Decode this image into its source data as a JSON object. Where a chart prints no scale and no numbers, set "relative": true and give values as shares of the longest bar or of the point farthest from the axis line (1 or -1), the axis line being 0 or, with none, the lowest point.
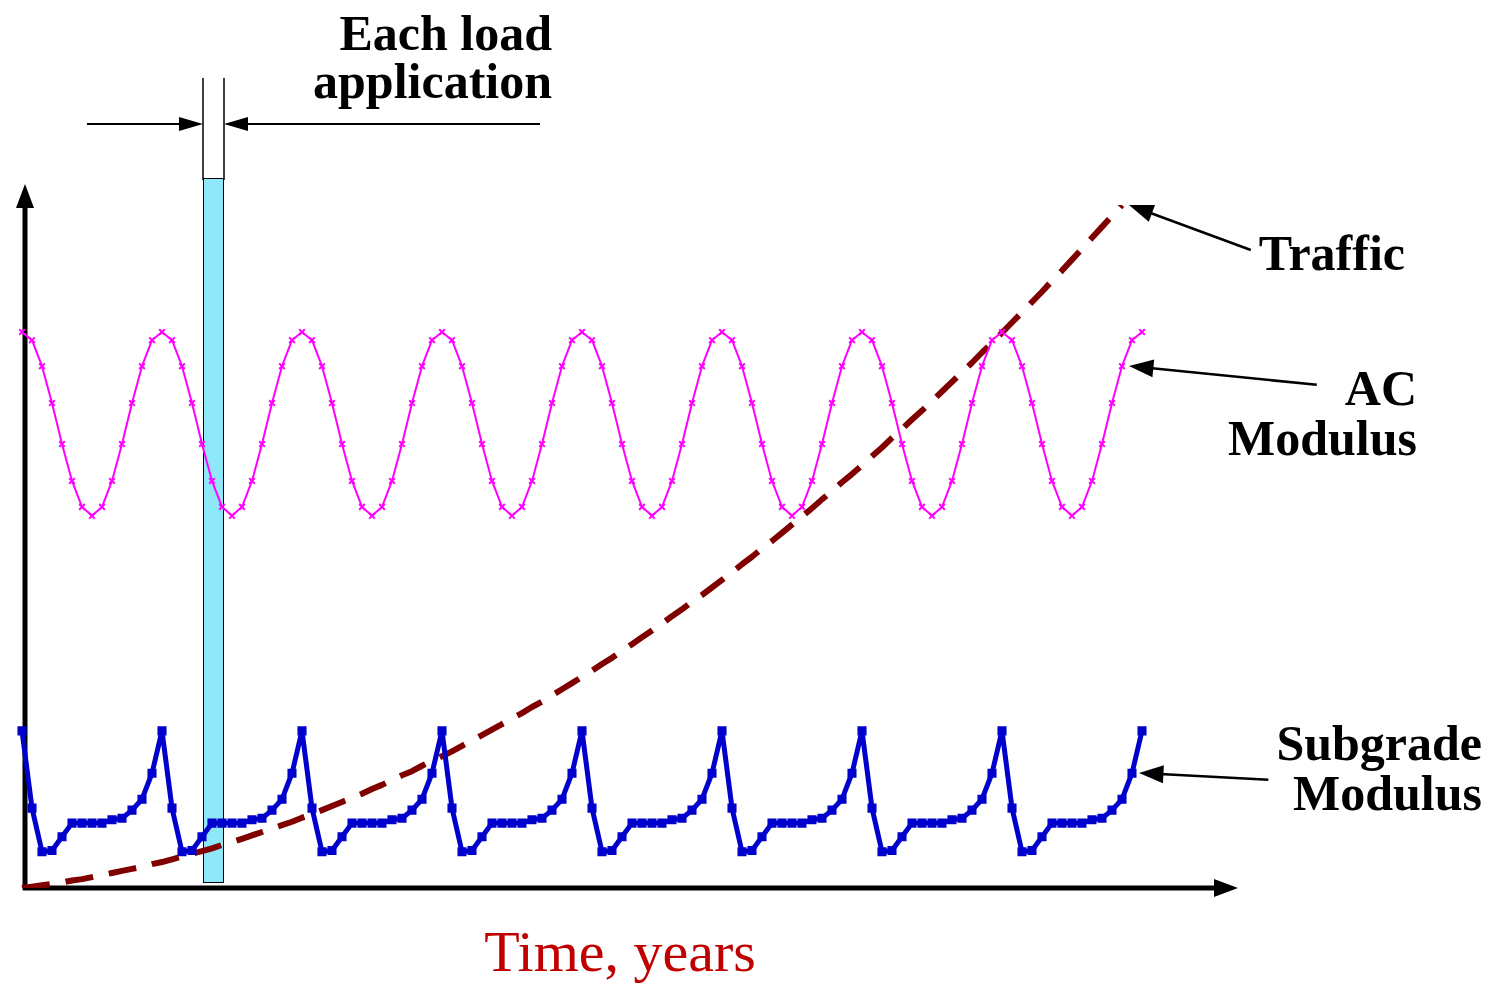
{
  "chart_data": {
    "type": "line",
    "relative": true,
    "xlabel": "Time, years",
    "legend": false,
    "tick_labels": false,
    "annotations": [
      "Each load application"
    ],
    "categories": [
      null,
      null,
      null,
      null,
      null,
      null,
      null,
      null,
      null,
      null,
      null,
      null,
      null,
      null,
      null,
      null,
      null,
      null,
      null,
      null,
      null,
      null,
      null,
      null,
      null,
      null,
      null,
      null,
      null,
      null,
      null,
      null,
      null,
      null,
      null,
      null,
      null,
      null,
      null,
      null,
      null,
      null,
      null,
      null,
      null,
      null,
      null,
      null,
      null,
      null,
      null,
      null,
      null,
      null,
      null,
      null,
      null,
      null,
      null,
      null,
      null,
      null,
      null,
      null,
      null,
      null,
      null,
      null,
      null,
      null,
      null,
      null,
      null,
      null,
      null,
      null,
      null,
      null,
      null,
      null,
      null,
      null,
      null,
      null,
      null,
      null,
      null,
      null,
      null,
      null,
      null,
      null,
      null,
      null,
      null,
      null,
      null,
      null,
      null,
      null,
      null,
      null,
      null,
      null,
      null,
      null,
      null,
      null,
      null,
      null,
      null,
      null,
      null
    ],
    "series": [
      {
        "name": "AC Modulus",
        "color": "#ff00ff",
        "marker": "cross",
        "line_style": "solid",
        "values": [
          0.814,
          0.802,
          0.764,
          0.71,
          0.65,
          0.596,
          0.558,
          0.545,
          0.558,
          0.596,
          0.65,
          0.71,
          0.764,
          0.802,
          0.814,
          0.802,
          0.764,
          0.71,
          0.65,
          0.596,
          0.558,
          0.545,
          0.558,
          0.596,
          0.65,
          0.71,
          0.764,
          0.802,
          0.814,
          0.802,
          0.764,
          0.71,
          0.65,
          0.596,
          0.558,
          0.545,
          0.558,
          0.596,
          0.65,
          0.71,
          0.764,
          0.802,
          0.814,
          0.802,
          0.764,
          0.71,
          0.65,
          0.596,
          0.558,
          0.545,
          0.558,
          0.596,
          0.65,
          0.71,
          0.764,
          0.802,
          0.814,
          0.802,
          0.764,
          0.71,
          0.65,
          0.596,
          0.558,
          0.545,
          0.558,
          0.596,
          0.65,
          0.71,
          0.764,
          0.802,
          0.814,
          0.802,
          0.764,
          0.71,
          0.65,
          0.596,
          0.558,
          0.545,
          0.558,
          0.596,
          0.65,
          0.71,
          0.764,
          0.802,
          0.814,
          0.802,
          0.764,
          0.71,
          0.65,
          0.596,
          0.558,
          0.545,
          0.558,
          0.596,
          0.65,
          0.71,
          0.764,
          0.802,
          0.814,
          0.802,
          0.764,
          0.71,
          0.65,
          0.596,
          0.558,
          0.545,
          0.558,
          0.596,
          0.65,
          0.71,
          0.764,
          0.802,
          0.814
        ]
      },
      {
        "name": "Subgrade Modulus",
        "color": "#0000cc",
        "marker": "square",
        "line_style": "solid",
        "values": [
          0.23,
          0.117,
          0.053,
          0.055,
          0.075,
          0.095,
          0.095,
          0.095,
          0.095,
          0.1,
          0.102,
          0.114,
          0.13,
          0.168,
          0.23,
          0.117,
          0.053,
          0.055,
          0.075,
          0.095,
          0.095,
          0.095,
          0.095,
          0.1,
          0.102,
          0.114,
          0.13,
          0.168,
          0.23,
          0.117,
          0.053,
          0.055,
          0.075,
          0.095,
          0.095,
          0.095,
          0.095,
          0.1,
          0.102,
          0.114,
          0.13,
          0.168,
          0.23,
          0.117,
          0.053,
          0.055,
          0.075,
          0.095,
          0.095,
          0.095,
          0.095,
          0.1,
          0.102,
          0.114,
          0.13,
          0.168,
          0.23,
          0.117,
          0.053,
          0.055,
          0.075,
          0.095,
          0.095,
          0.095,
          0.095,
          0.1,
          0.102,
          0.114,
          0.13,
          0.168,
          0.23,
          0.117,
          0.053,
          0.055,
          0.075,
          0.095,
          0.095,
          0.095,
          0.095,
          0.1,
          0.102,
          0.114,
          0.13,
          0.168,
          0.23,
          0.117,
          0.053,
          0.055,
          0.075,
          0.095,
          0.095,
          0.095,
          0.095,
          0.1,
          0.102,
          0.114,
          0.13,
          0.168,
          0.23,
          0.117,
          0.053,
          0.055,
          0.075,
          0.095,
          0.095,
          0.095,
          0.095,
          0.1,
          0.102,
          0.114,
          0.13,
          0.168,
          0.23
        ]
      },
      {
        "name": "Traffic",
        "color": "#800000",
        "marker": "none",
        "line_style": "dashed",
        "values": [
          0,
          0.002,
          0.004,
          0.006,
          0.008,
          0.011,
          0.013,
          0.016,
          0.019,
          0.022,
          0.025,
          0.028,
          0.031,
          0.035,
          0.038,
          0.042,
          0.046,
          0.05,
          0.054,
          0.058,
          0.063,
          0.067,
          0.072,
          0.077,
          0.082,
          0.087,
          0.092,
          0.097,
          0.103,
          0.108,
          0.114,
          0.12,
          0.126,
          0.132,
          0.138,
          0.145,
          0.151,
          0.158,
          0.165,
          0.171,
          0.179,
          0.186,
          0.193,
          0.2,
          0.208,
          0.216,
          0.224,
          0.232,
          0.24,
          0.248,
          0.256,
          0.265,
          0.273,
          0.282,
          0.291,
          0.3,
          0.309,
          0.318,
          0.328,
          0.337,
          0.347,
          0.357,
          0.367,
          0.377,
          0.387,
          0.398,
          0.408,
          0.419,
          0.429,
          0.44,
          0.451,
          0.462,
          0.474,
          0.485,
          0.497,
          0.508,
          0.52,
          0.532,
          0.544,
          0.556,
          0.569,
          0.581,
          0.594,
          0.606,
          0.619,
          0.632,
          0.645,
          0.659,
          0.672,
          0.686,
          0.699,
          0.713,
          0.727,
          0.741,
          0.755,
          0.769,
          0.784,
          0.798,
          0.813,
          0.828,
          0.843,
          0.858,
          0.873,
          0.889,
          0.904,
          0.92,
          0.936,
          0.952,
          0.968,
          0.984,
          1.0,
          null,
          null
        ]
      }
    ]
  }
}
